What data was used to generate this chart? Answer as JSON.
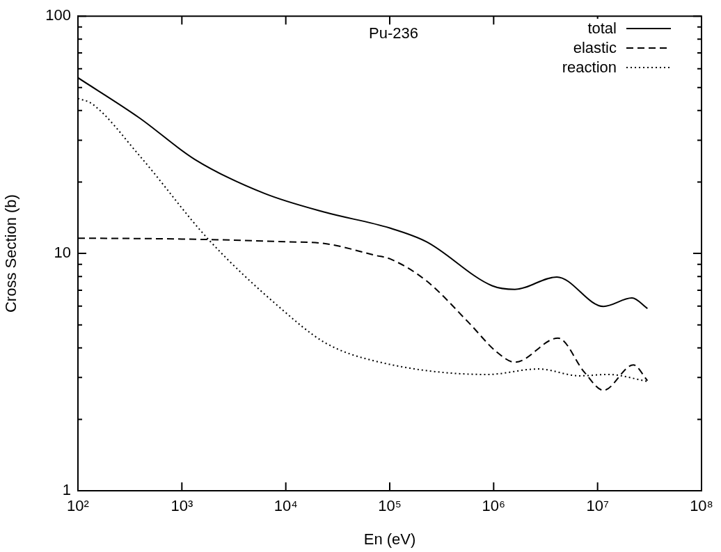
{
  "chart_data": {
    "type": "line",
    "xlabel": "En (eV)",
    "ylabel": "Cross Section (b)",
    "annotations": [
      "Pu-236"
    ],
    "log": "xy",
    "legend": "top right",
    "grid": false,
    "marker": "none",
    "xlim": [
      100,
      100000000
    ],
    "ylim": [
      1,
      100
    ],
    "xticks": [
      {
        "value": 100,
        "label": "10²"
      },
      {
        "value": 1000,
        "label": "10³"
      },
      {
        "value": 10000,
        "label": "10⁴"
      },
      {
        "value": 100000,
        "label": "10⁵"
      },
      {
        "value": 1000000,
        "label": "10⁶"
      },
      {
        "value": 10000000,
        "label": "10⁷"
      },
      {
        "value": 100000000,
        "label": "10⁸"
      }
    ],
    "yticks": [
      1,
      {
        "value": 2,
        "label": null
      },
      {
        "value": 3,
        "label": null
      },
      {
        "value": 4,
        "label": null
      },
      {
        "value": 5,
        "label": null
      },
      {
        "value": 6,
        "label": null
      },
      {
        "value": 7,
        "label": null
      },
      {
        "value": 8,
        "label": null
      },
      {
        "value": 9,
        "label": null
      },
      10,
      {
        "value": 20,
        "label": null
      },
      {
        "value": 30,
        "label": null
      },
      {
        "value": 40,
        "label": null
      },
      {
        "value": 50,
        "label": null
      },
      {
        "value": 60,
        "label": null
      },
      {
        "value": 70,
        "label": null
      },
      {
        "value": 80,
        "label": null
      },
      {
        "value": 90,
        "label": null
      },
      100
    ],
    "series": [
      {
        "name": "total",
        "color": "#000000",
        "line_style": "solid",
        "x": [
          100,
          389,
          1334,
          6237,
          23988,
          100000,
          226000,
          966000,
          1600000,
          4050000,
          11400000,
          21400000,
          30200000
        ],
        "values": [
          55,
          37.3,
          24.9,
          17.9,
          14.9,
          12.8,
          11.2,
          7.31,
          7.06,
          7.96,
          5.98,
          6.49,
          5.86
        ]
      },
      {
        "name": "elastic",
        "color": "#000000",
        "line_style": "dashed",
        "x": [
          100,
          1000,
          10000,
          23988,
          74100,
          100000,
          226000,
          571000,
          1060000,
          1600000,
          4170000,
          7500000,
          11400000,
          22100000,
          30200000
        ],
        "values": [
          11.6,
          11.5,
          11.2,
          11.0,
          9.8,
          9.5,
          7.66,
          5.13,
          3.86,
          3.48,
          4.4,
          3.15,
          2.65,
          3.39,
          2.91
        ]
      },
      {
        "name": "reaction",
        "color": "#000000",
        "line_style": "dotted",
        "x": [
          100,
          138,
          389,
          1820,
          8510,
          23988,
          74100,
          871000,
          2690000,
          6760000,
          12600000,
          30200000
        ],
        "values": [
          45,
          42.6,
          25.9,
          11.4,
          5.98,
          4.2,
          3.51,
          3.09,
          3.26,
          3.05,
          3.09,
          2.89
        ]
      }
    ]
  }
}
